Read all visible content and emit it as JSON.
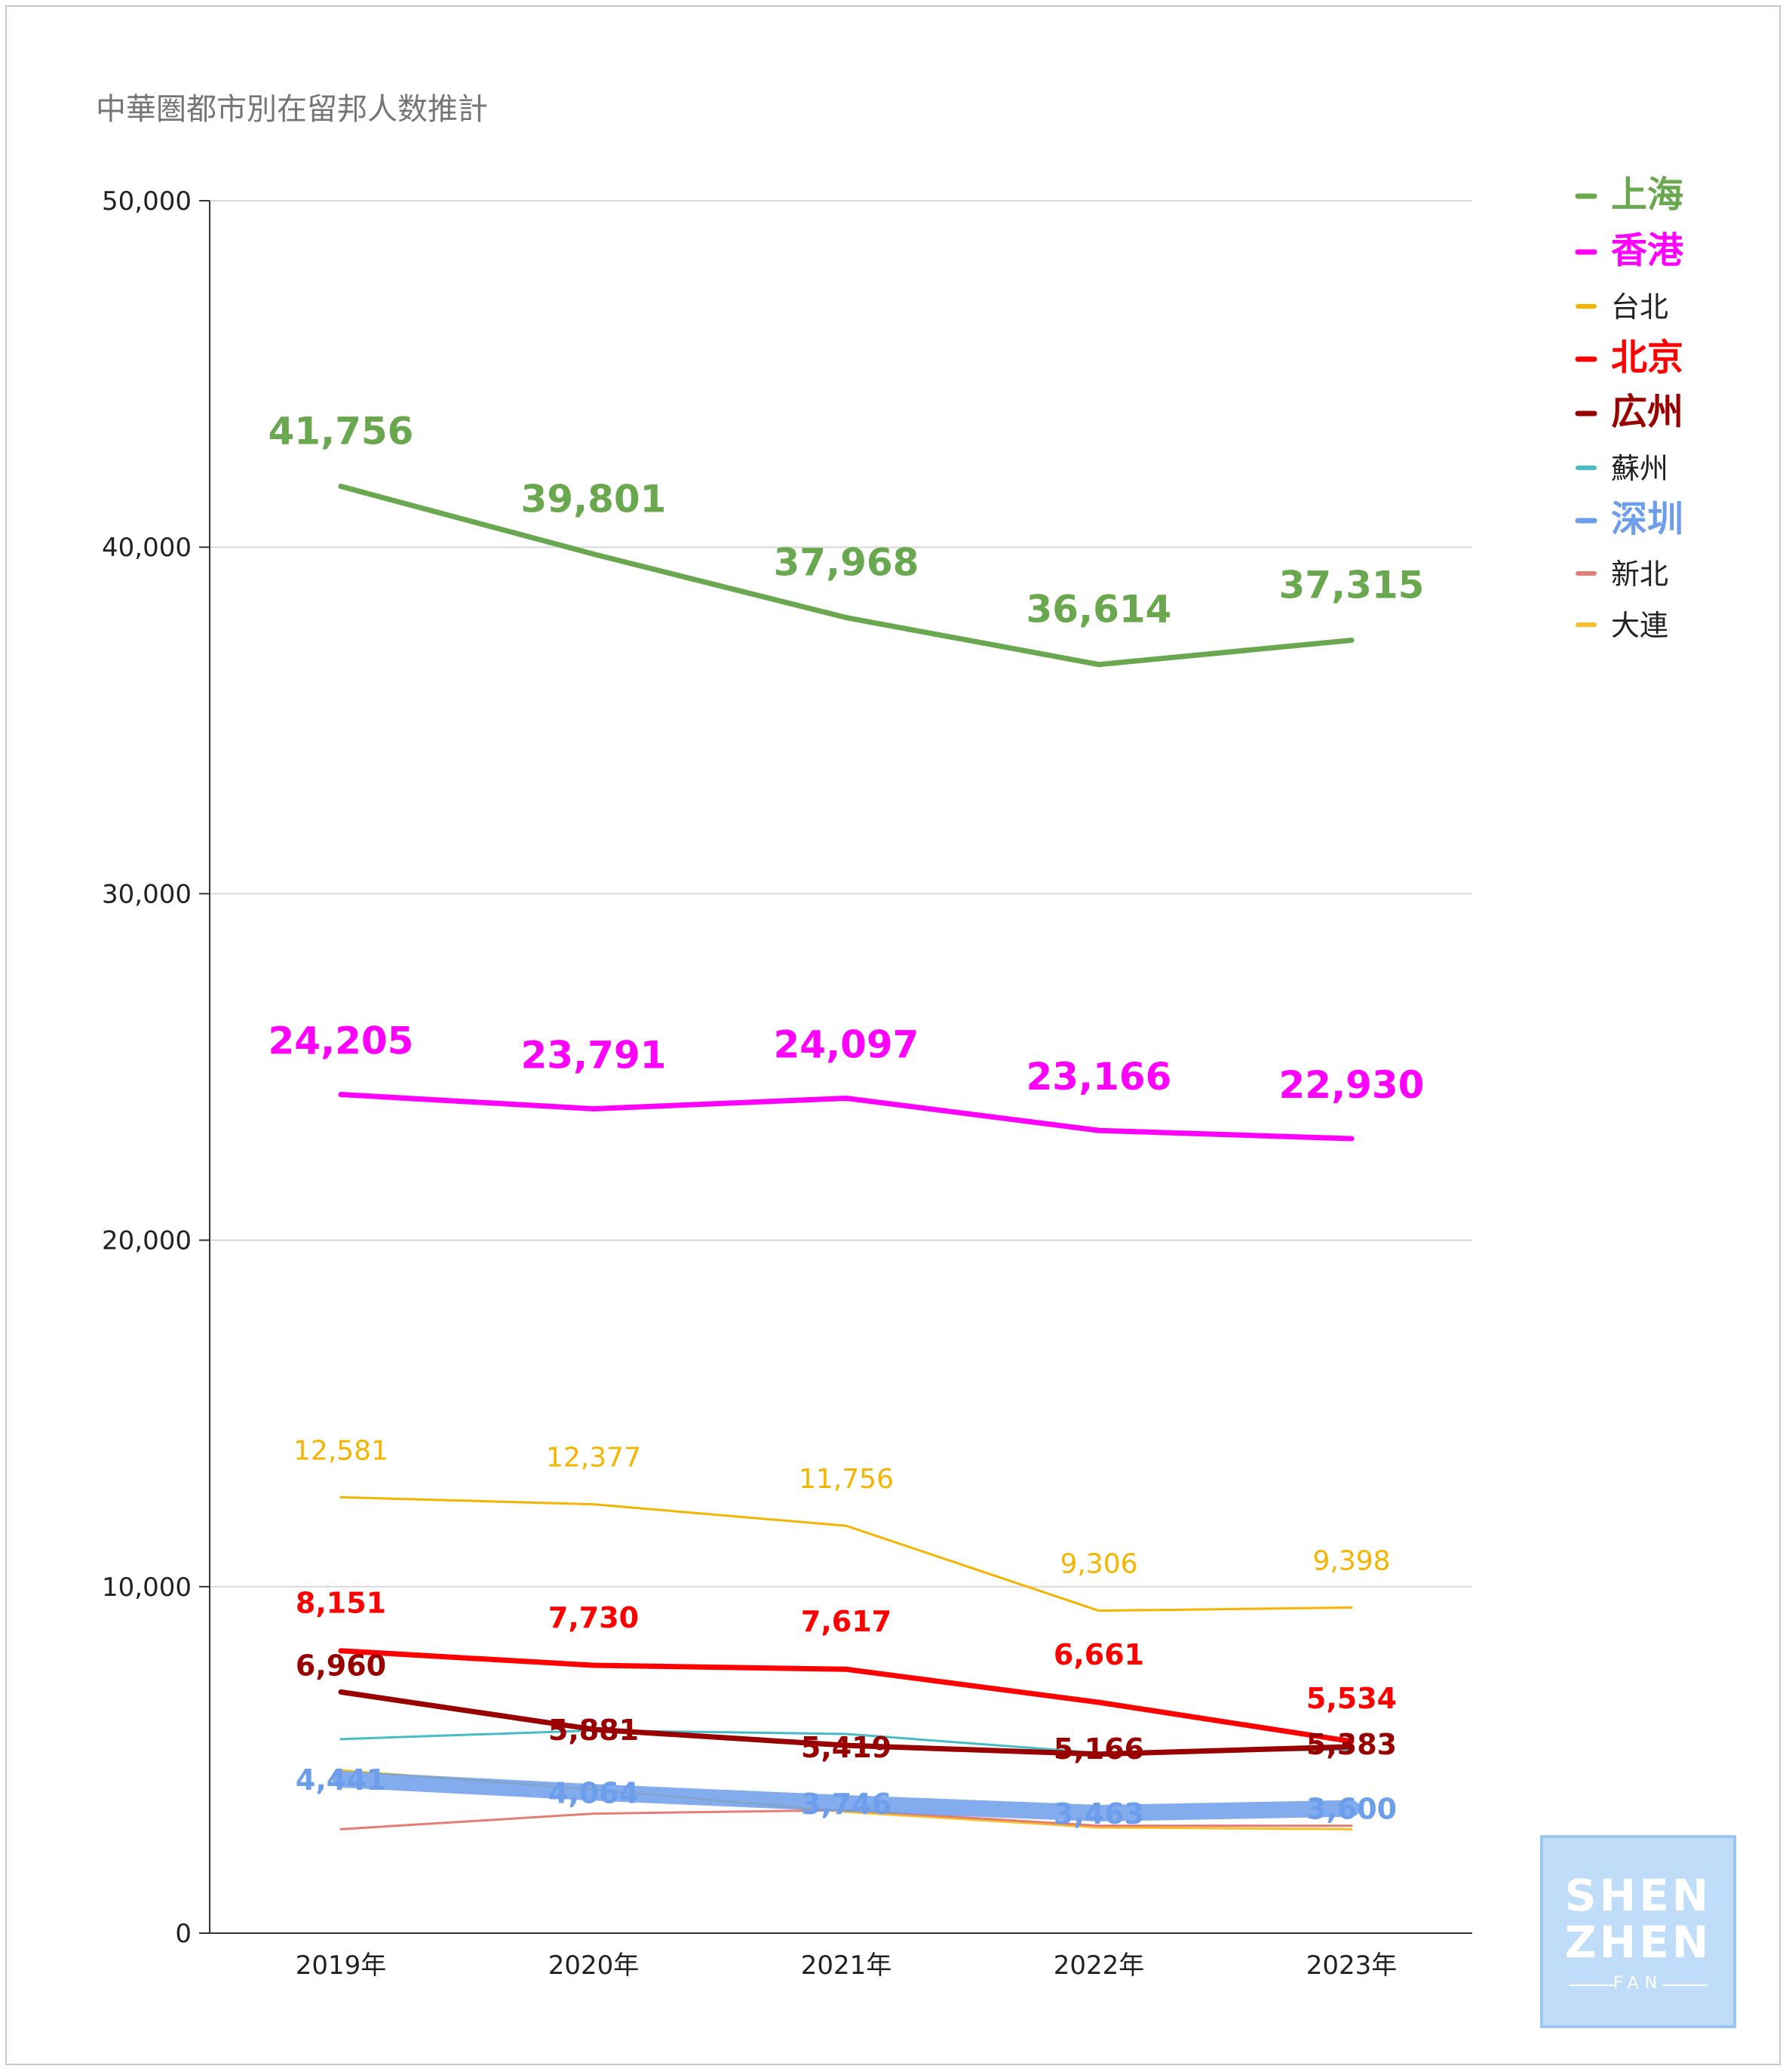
{
  "chart_data": {
    "type": "line",
    "title": "中華圏都市別在留邦人数推計",
    "categories": [
      "2019年",
      "2020年",
      "2021年",
      "2022年",
      "2023年"
    ],
    "y_ticks": [
      "0",
      "10,000",
      "20,000",
      "30,000",
      "40,000",
      "50,000"
    ],
    "ylim": [
      0,
      50000
    ],
    "grid": true,
    "legend_position": "right",
    "series": [
      {
        "name": "上海",
        "color": "#6aa84f",
        "values": [
          41756,
          39801,
          37968,
          36614,
          37315
        ],
        "labels": [
          "41,756",
          "39,801",
          "37,968",
          "36,614",
          "37,315"
        ],
        "emphasis": "bold"
      },
      {
        "name": "香港",
        "color": "#ff00ff",
        "values": [
          24205,
          23791,
          24097,
          23166,
          22930
        ],
        "labels": [
          "24,205",
          "23,791",
          "24,097",
          "23,166",
          "22,930"
        ],
        "emphasis": "bold"
      },
      {
        "name": "台北",
        "color": "#f4b400",
        "values": [
          12581,
          12377,
          11756,
          9306,
          9398
        ],
        "labels": [
          "12,581",
          "12,377",
          "11,756",
          "9,306",
          "9,398"
        ],
        "emphasis": "normal"
      },
      {
        "name": "北京",
        "color": "#ff0000",
        "values": [
          8151,
          7730,
          7617,
          6661,
          5534
        ],
        "labels": [
          "8,151",
          "7,730",
          "7,617",
          "6,661",
          "5,534"
        ],
        "emphasis": "bold"
      },
      {
        "name": "広州",
        "color": "#990000",
        "values": [
          6960,
          5881,
          5419,
          5166,
          5383
        ],
        "labels": [
          "6,960",
          "5,881",
          "5,419",
          "5,166",
          "5,383"
        ],
        "emphasis": "bold"
      },
      {
        "name": "蘇州",
        "color": "#46bdc6",
        "values": [
          5600,
          5850,
          5750,
          5200,
          5300
        ],
        "labels": [],
        "emphasis": "normal"
      },
      {
        "name": "深圳",
        "color": "#6d9eeb",
        "values": [
          4441,
          4064,
          3746,
          3463,
          3600
        ],
        "labels": [
          "4,441",
          "4,064",
          "3,746",
          "3,463",
          "3,600"
        ],
        "emphasis": "thick"
      },
      {
        "name": "新北",
        "color": "#e67c73",
        "values": [
          3000,
          3450,
          3550,
          3100,
          3100
        ],
        "labels": [],
        "emphasis": "normal"
      },
      {
        "name": "大連",
        "color": "#f6c026",
        "values": [
          4700,
          4150,
          3500,
          3050,
          3000
        ],
        "labels": [],
        "emphasis": "normal"
      }
    ]
  },
  "logo": {
    "line1": "SHEN",
    "line2": "ZHEN",
    "line3": "FAN"
  }
}
